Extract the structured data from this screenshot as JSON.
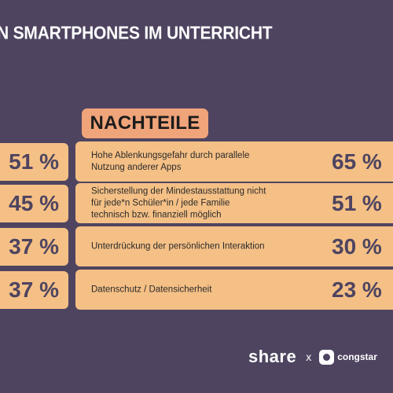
{
  "title_line": "N SMARTPHONES IM UNTERRICHT",
  "section_label": "NACHTEILE",
  "chart_data": {
    "type": "table",
    "title": "N SMARTPHONES IM UNTERRICHT",
    "header": "NACHTEILE",
    "rows": [
      {
        "left_value": "51 %",
        "label": "Hohe Ablenkungsgefahr durch parallele\nNutzung anderer Apps",
        "right_value": "65 %"
      },
      {
        "left_value": "45 %",
        "label": "Sicherstellung der Mindestausstattung nicht\nfür jede*n Schüler*in / jede Familie\ntechnisch bzw. finanziell möglich",
        "right_value": "51 %"
      },
      {
        "left_value": "37 %",
        "label": "Unterdrückung der persönlichen Interaktion",
        "right_value": "30 %"
      },
      {
        "left_value": "37 %",
        "label": "Datenschutz / Datensicherheit",
        "right_value": "23 %"
      }
    ]
  },
  "footer": {
    "brand1": "share",
    "separator": "x",
    "brand2_icon": "congstar-c-icon",
    "brand2": "congstar"
  },
  "colors": {
    "background": "#4e4460",
    "box": "#f5c086",
    "badge": "#f0a47a"
  }
}
